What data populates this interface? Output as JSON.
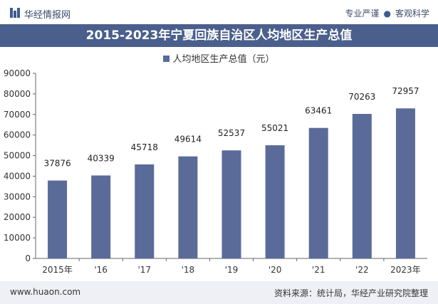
{
  "header": {
    "brand": "华经情报网",
    "tagline_left": "专业严谨",
    "tagline_sep": "●",
    "tagline_right": "客观科学"
  },
  "footer": {
    "url": "www.huaon.com",
    "source": "资料来源：统计局，华经产业研究院整理"
  },
  "colors": {
    "bar": "#5a6b9a",
    "title_band": "#4a5f8c"
  },
  "chart_data": {
    "type": "bar",
    "title": "2015-2023年宁夏回族自治区人均地区生产总值",
    "categories": [
      "2015年",
      "'16",
      "'17",
      "'18",
      "'19",
      "'20",
      "'21",
      "'22",
      "2023年"
    ],
    "series": [
      {
        "name": "人均地区生产总值（元）",
        "values": [
          37876,
          40339,
          45718,
          49614,
          52537,
          55021,
          63461,
          70263,
          72957
        ]
      }
    ],
    "ylim": [
      0,
      90000
    ],
    "yticks": [
      0,
      10000,
      20000,
      30000,
      40000,
      50000,
      60000,
      70000,
      80000,
      90000
    ],
    "grid": false,
    "legend_position": "top-center",
    "data_labels": true
  }
}
